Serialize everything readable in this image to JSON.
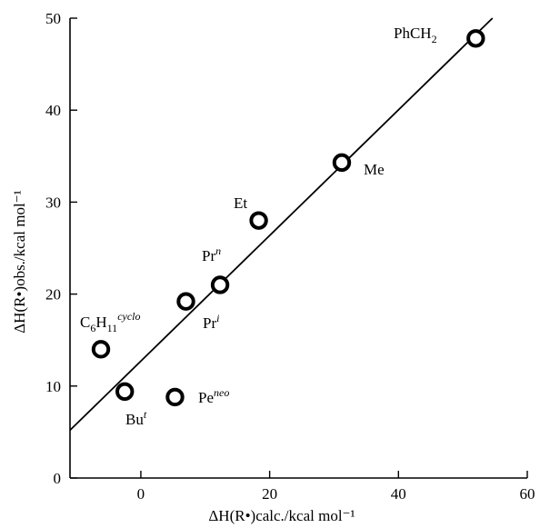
{
  "chart_data": {
    "type": "scatter",
    "xlabel": "ΔH(R•)calc./kcal mol⁻¹",
    "ylabel": "ΔH(R•)obs./kcal mol⁻¹",
    "xlim": [
      -11,
      60
    ],
    "ylim": [
      0,
      50
    ],
    "xticks": [
      0,
      20,
      40,
      60
    ],
    "xtick_labels": [
      "0",
      "20",
      "40",
      "60"
    ],
    "yticks": [
      0,
      10,
      20,
      30,
      40,
      50
    ],
    "ytick_labels": [
      "0",
      "10",
      "20",
      "30",
      "40",
      "50"
    ],
    "grid": false,
    "points": [
      {
        "label": "PhCH₂",
        "x": 52.0,
        "y": 47.8
      },
      {
        "label": "Me",
        "x": 31.2,
        "y": 34.3
      },
      {
        "label": "Et",
        "x": 18.3,
        "y": 28.0
      },
      {
        "label": "Prⁿ",
        "x": 12.3,
        "y": 21.0
      },
      {
        "label": "Prⁱ",
        "x": 7.0,
        "y": 19.2
      },
      {
        "label": "C₆H₁₁cyclo",
        "x": -6.2,
        "y": 14.0
      },
      {
        "label": "Buᵗ",
        "x": -2.5,
        "y": 9.4
      },
      {
        "label": "Peⁿᵉᵒ",
        "x": 5.3,
        "y": 8.8
      }
    ],
    "fit_line": {
      "x": [
        -11,
        54.6
      ],
      "y": [
        5.2,
        50.0
      ]
    }
  }
}
